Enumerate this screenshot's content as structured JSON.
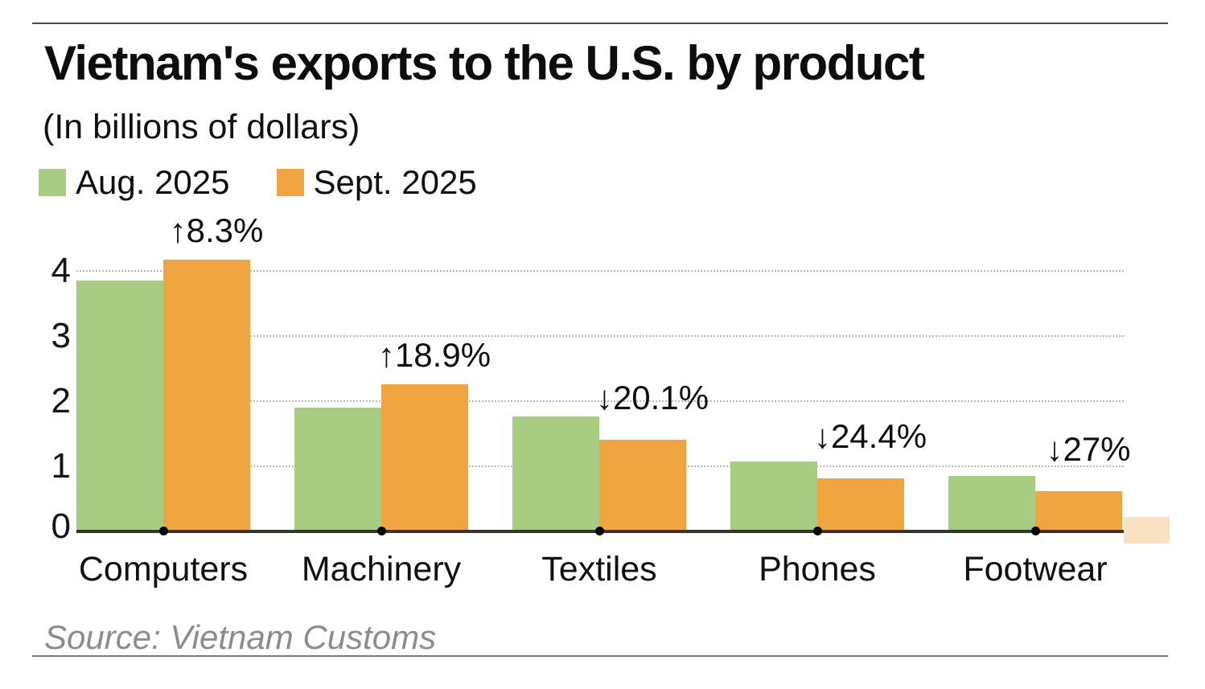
{
  "header": {
    "title": "Vietnam's exports to the U.S. by product",
    "subtitle": "(In billions of dollars)"
  },
  "legend": {
    "items": [
      {
        "label": "Aug. 2025",
        "color": "#a9cc83"
      },
      {
        "label": "Sept. 2025",
        "color": "#f0a541"
      }
    ]
  },
  "footer": {
    "source": "Source: Vietnam Customs"
  },
  "chart_data": {
    "type": "bar",
    "title": "Vietnam's exports to the U.S. by product",
    "subtitle": "(In billions of dollars)",
    "unit": "billions of U.S. dollars",
    "categories": [
      "Computers",
      "Machinery",
      "Textiles",
      "Phones",
      "Footwear"
    ],
    "series": [
      {
        "name": "Aug. 2025",
        "color": "#a9cc83",
        "values": [
          3.85,
          1.9,
          1.77,
          1.07,
          0.85
        ]
      },
      {
        "name": "Sept. 2025",
        "color": "#f0a541",
        "values": [
          4.17,
          2.26,
          1.41,
          0.81,
          0.62
        ]
      }
    ],
    "annotations": [
      {
        "category": "Computers",
        "text": "↑8.3%",
        "direction": "up"
      },
      {
        "category": "Machinery",
        "text": "↑18.9%",
        "direction": "up"
      },
      {
        "category": "Textiles",
        "text": "↓20.1%",
        "direction": "down"
      },
      {
        "category": "Phones",
        "text": "↓24.4%",
        "direction": "down"
      },
      {
        "category": "Footwear",
        "text": "↓27%",
        "direction": "down"
      }
    ],
    "yticks": [
      0,
      1,
      2,
      3,
      4
    ],
    "ylim": [
      0,
      4.4
    ],
    "grid": "dotted-horizontal",
    "legend_position": "top-left"
  },
  "colors": {
    "aug": "#a9cc83",
    "sept": "#f0a541",
    "baseline": "#35352c",
    "gridline": "#b5b5b5",
    "rule_top": "#4c4c4c",
    "rule_bottom": "#7a7a7a",
    "source_text": "#8c8c8c",
    "text": "#111111"
  }
}
